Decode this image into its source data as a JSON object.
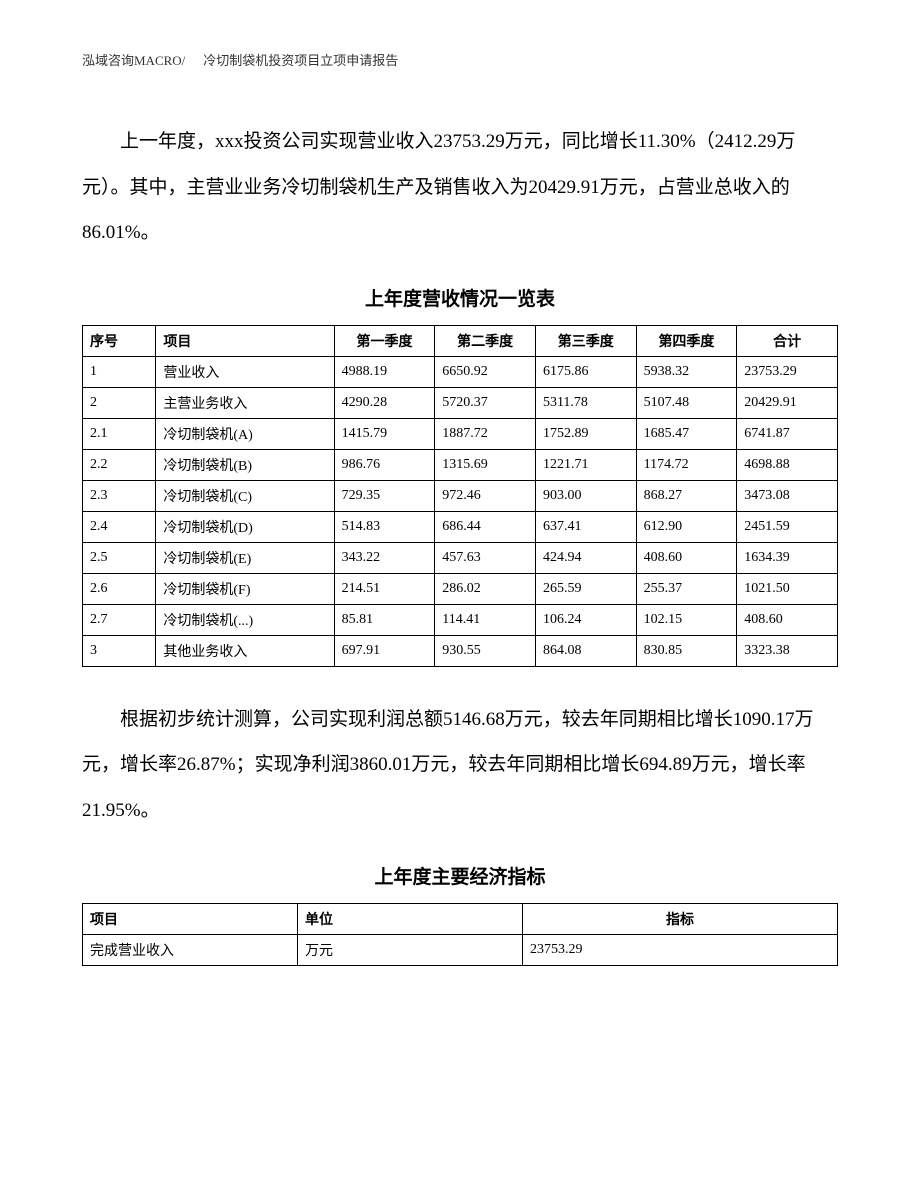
{
  "header": {
    "company": "泓域咨询MACRO/",
    "title": "冷切制袋机投资项目立项申请报告"
  },
  "paragraph1": "上一年度，xxx投资公司实现营业收入23753.29万元，同比增长11.30%（2412.29万元）。其中，主营业业务冷切制袋机生产及销售收入为20429.91万元，占营业总收入的86.01%。",
  "table1": {
    "title": "上年度营收情况一览表",
    "columns": [
      "序号",
      "项目",
      "第一季度",
      "第二季度",
      "第三季度",
      "第四季度",
      "合计"
    ],
    "rows": [
      [
        "1",
        "营业收入",
        "4988.19",
        "6650.92",
        "6175.86",
        "5938.32",
        "23753.29"
      ],
      [
        "2",
        "主营业务收入",
        "4290.28",
        "5720.37",
        "5311.78",
        "5107.48",
        "20429.91"
      ],
      [
        "2.1",
        "冷切制袋机(A)",
        "1415.79",
        "1887.72",
        "1752.89",
        "1685.47",
        "6741.87"
      ],
      [
        "2.2",
        "冷切制袋机(B)",
        "986.76",
        "1315.69",
        "1221.71",
        "1174.72",
        "4698.88"
      ],
      [
        "2.3",
        "冷切制袋机(C)",
        "729.35",
        "972.46",
        "903.00",
        "868.27",
        "3473.08"
      ],
      [
        "2.4",
        "冷切制袋机(D)",
        "514.83",
        "686.44",
        "637.41",
        "612.90",
        "2451.59"
      ],
      [
        "2.5",
        "冷切制袋机(E)",
        "343.22",
        "457.63",
        "424.94",
        "408.60",
        "1634.39"
      ],
      [
        "2.6",
        "冷切制袋机(F)",
        "214.51",
        "286.02",
        "265.59",
        "255.37",
        "1021.50"
      ],
      [
        "2.7",
        "冷切制袋机(...)",
        "85.81",
        "114.41",
        "106.24",
        "102.15",
        "408.60"
      ],
      [
        "3",
        "其他业务收入",
        "697.91",
        "930.55",
        "864.08",
        "830.85",
        "3323.38"
      ]
    ]
  },
  "paragraph2": "根据初步统计测算，公司实现利润总额5146.68万元，较去年同期相比增长1090.17万元，增长率26.87%；实现净利润3860.01万元，较去年同期相比增长694.89万元，增长率21.95%。",
  "table2": {
    "title": "上年度主要经济指标",
    "columns": [
      "项目",
      "单位",
      "指标"
    ],
    "rows": [
      [
        "完成营业收入",
        "万元",
        "23753.29"
      ]
    ]
  }
}
